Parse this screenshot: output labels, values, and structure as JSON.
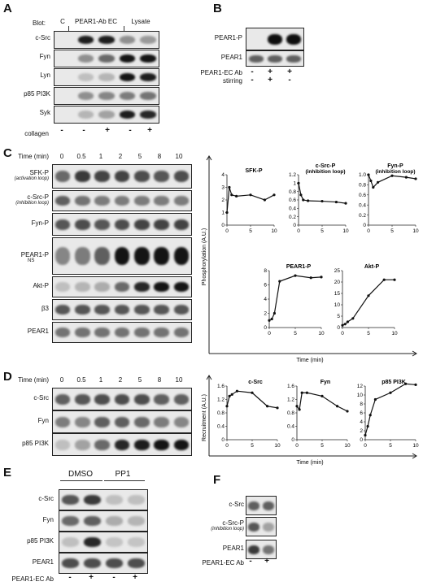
{
  "panelA": {
    "letter": "A",
    "blot_label": "Blot:",
    "col_headers": [
      "C",
      "PEAR1-Ab EC",
      "Lysate"
    ],
    "rows": [
      "c-Src",
      "Fyn",
      "Lyn",
      "p85 PI3K",
      "Syk"
    ],
    "collagen_label": "collagen",
    "collagen_signs": [
      "-",
      "-",
      "+",
      "-",
      "+"
    ]
  },
  "panelB": {
    "letter": "B",
    "rows": [
      "PEAR1-P",
      "PEAR1"
    ],
    "cond1_label": "PEAR1-EC Ab",
    "cond1_signs": [
      "-",
      "+",
      "+"
    ],
    "cond2_label": "stirring",
    "cond2_signs": [
      "-",
      "+",
      "-"
    ]
  },
  "panelC": {
    "letter": "C",
    "time_label": "Time (min)",
    "times": [
      "0",
      "0.5",
      "1",
      "2",
      "5",
      "8",
      "10"
    ],
    "rows": [
      {
        "name": "SFK-P",
        "sub": "(activation loop)"
      },
      {
        "name": "c-Src-P",
        "sub": "(inhibition loop)"
      },
      {
        "name": "Fyn-P",
        "sub": ""
      },
      {
        "name": "PEAR1-P",
        "sub": ""
      },
      {
        "name": "Akt-P",
        "sub": ""
      },
      {
        "name": "β3",
        "sub": ""
      },
      {
        "name": "PEAR1",
        "sub": ""
      }
    ],
    "ns_label": "NS",
    "ylabel": "Phosphorylation (A.U.)",
    "xlabel": "Time (min)"
  },
  "panelD": {
    "letter": "D",
    "time_label": "Time (min)",
    "times": [
      "0",
      "0.5",
      "1",
      "2",
      "5",
      "8",
      "10"
    ],
    "rows": [
      "c-Src",
      "Fyn",
      "p85 PI3K"
    ],
    "ylabel": "Recruitment (A.U.)",
    "xlabel": "Time (min)"
  },
  "panelE": {
    "letter": "E",
    "headers": [
      "DMSO",
      "PP1"
    ],
    "rows": [
      "c-Src",
      "Fyn",
      "p85 PI3K",
      "PEAR1"
    ],
    "cond_label": "PEAR1-EC Ab",
    "signs": [
      "-",
      "+",
      "-",
      "+"
    ]
  },
  "panelF": {
    "letter": "F",
    "rows": [
      {
        "name": "c-Src",
        "sub": ""
      },
      {
        "name": "c-Src-P",
        "sub": "(inhibition loop)"
      },
      {
        "name": "PEAR1",
        "sub": ""
      }
    ],
    "cond_label": "PEAR1-EC Ab",
    "signs": [
      "-",
      "+"
    ]
  },
  "chart_data": [
    {
      "type": "line",
      "title": "SFK-P",
      "x": [
        0,
        0.5,
        1,
        2,
        5,
        8,
        10
      ],
      "y": [
        1.0,
        3.0,
        2.4,
        2.3,
        2.4,
        2.0,
        2.4
      ],
      "ylim": [
        0,
        4
      ],
      "yticks": [
        "0",
        "1",
        "2",
        "3",
        "4"
      ],
      "xlim": [
        0,
        10
      ],
      "xticks": [
        "0",
        "5",
        "10"
      ]
    },
    {
      "type": "line",
      "title": "c-Src-P",
      "subtitle": "(inhibition loop)",
      "x": [
        0,
        0.5,
        1,
        2,
        5,
        8,
        10
      ],
      "y": [
        1.0,
        0.72,
        0.6,
        0.58,
        0.57,
        0.55,
        0.52
      ],
      "ylim": [
        0,
        1.2
      ],
      "yticks": [
        "0",
        "0.2",
        "0.4",
        "0.6",
        "0.8",
        "1",
        "1.2"
      ],
      "xlim": [
        0,
        10
      ],
      "xticks": [
        "0",
        "5",
        "10"
      ]
    },
    {
      "type": "line",
      "title": "Fyn-P",
      "subtitle": "(inhibition loop)",
      "x": [
        0,
        0.5,
        1,
        2,
        5,
        8,
        10
      ],
      "y": [
        1.0,
        0.88,
        0.75,
        0.85,
        0.98,
        0.95,
        0.92
      ],
      "ylim": [
        0,
        1.0
      ],
      "yticks": [
        "0",
        "0.2",
        "0.4",
        "0.6",
        "0.8",
        "1.0"
      ],
      "xlim": [
        0,
        10
      ],
      "xticks": [
        "0",
        "5",
        "10"
      ]
    },
    {
      "type": "line",
      "title": "PEAR1-P",
      "x": [
        0,
        0.5,
        1,
        2,
        5,
        8,
        10
      ],
      "y": [
        1.0,
        1.2,
        2.0,
        6.5,
        7.3,
        7.0,
        7.1
      ],
      "ylim": [
        0,
        8
      ],
      "yticks": [
        "0",
        "2",
        "4",
        "6",
        "8"
      ],
      "xlim": [
        0,
        10
      ],
      "xticks": [
        "0",
        "5",
        "10"
      ]
    },
    {
      "type": "line",
      "title": "Akt-P",
      "x": [
        0,
        0.5,
        1,
        2,
        5,
        8,
        10
      ],
      "y": [
        1.0,
        1.5,
        2.5,
        4.0,
        14.0,
        21.0,
        21.0
      ],
      "ylim": [
        0,
        25
      ],
      "yticks": [
        "0",
        "5",
        "10",
        "15",
        "20",
        "25"
      ],
      "xlim": [
        0,
        10
      ],
      "xticks": [
        "0",
        "5",
        "10"
      ]
    },
    {
      "type": "line",
      "title": "c-Src",
      "x": [
        0,
        0.5,
        1,
        2,
        5,
        8,
        10
      ],
      "y": [
        1.0,
        1.3,
        1.35,
        1.45,
        1.4,
        1.0,
        0.95
      ],
      "ylim": [
        0,
        1.6
      ],
      "yticks": [
        "0",
        "0.4",
        "0.8",
        "1.2",
        "1.6"
      ],
      "xlim": [
        0,
        10
      ],
      "xticks": [
        "0",
        "5",
        "10"
      ]
    },
    {
      "type": "line",
      "title": "Fyn",
      "x": [
        0,
        0.5,
        1,
        2,
        5,
        8,
        10
      ],
      "y": [
        1.0,
        0.9,
        1.4,
        1.4,
        1.3,
        1.0,
        0.85
      ],
      "ylim": [
        0,
        1.6
      ],
      "yticks": [
        "0",
        "0.4",
        "0.8",
        "1.2",
        "1.6"
      ],
      "xlim": [
        0,
        10
      ],
      "xticks": [
        "0",
        "5",
        "10"
      ]
    },
    {
      "type": "line",
      "title": "p85 PI3K",
      "x": [
        0,
        0.5,
        1,
        2,
        5,
        8,
        10
      ],
      "y": [
        1.0,
        3.0,
        5.5,
        9.0,
        10.5,
        12.5,
        12.3
      ],
      "ylim": [
        0,
        12
      ],
      "yticks": [
        "0",
        "2",
        "4",
        "6",
        "8",
        "10",
        "12"
      ],
      "xlim": [
        0,
        10
      ],
      "xticks": [
        "0",
        "5",
        "10"
      ]
    }
  ]
}
